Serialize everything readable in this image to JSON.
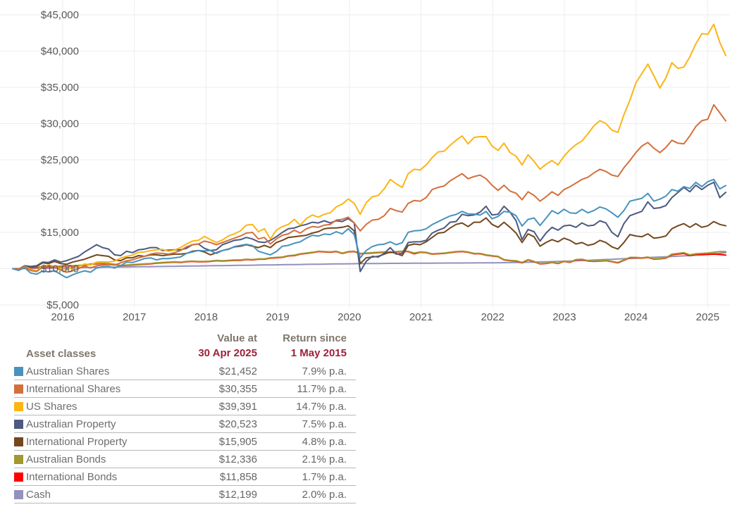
{
  "chart_data": {
    "type": "line",
    "x_resolution": "monthly",
    "x_range_labels": [
      "1 May 2015",
      "30 Apr 2025"
    ],
    "x_tick_labels": [
      "2016",
      "2017",
      "2018",
      "2019",
      "2020",
      "2021",
      "2022",
      "2023",
      "2024",
      "2025"
    ],
    "y_tick_labels": [
      "$45,000",
      "$40,000",
      "$35,000",
      "$30,000",
      "$25,000",
      "$20,000",
      "$15,000",
      "$10,000",
      "$5,000"
    ],
    "y_ticks": [
      45000,
      40000,
      35000,
      30000,
      25000,
      20000,
      15000,
      10000,
      5000
    ],
    "ylim": [
      5000,
      45000
    ],
    "grid": "on",
    "series": [
      {
        "name": "Australian Shares",
        "color": "#4793BD",
        "values": [
          10000,
          9760,
          10150,
          9400,
          9230,
          9660,
          9560,
          9720,
          9200,
          8760,
          9150,
          9450,
          9700,
          9500,
          10100,
          10260,
          10310,
          10100,
          10400,
          10900,
          10850,
          11100,
          11400,
          11490,
          11200,
          11400,
          11380,
          11500,
          11600,
          12100,
          12300,
          12500,
          12450,
          12500,
          12100,
          12500,
          12650,
          13050,
          13200,
          13350,
          13180,
          12400,
          12150,
          11900,
          12350,
          13100,
          13200,
          13500,
          13700,
          14200,
          14600,
          14490,
          14770,
          14700,
          15100,
          14790,
          15500,
          14700,
          11480,
          12500,
          13050,
          13300,
          13380,
          13700,
          13300,
          13570,
          15010,
          15210,
          15260,
          15500,
          16080,
          16480,
          16880,
          17260,
          17480,
          17890,
          17540,
          17510,
          17390,
          17880,
          16870,
          17190,
          17890,
          17780,
          17300,
          15870,
          16790,
          16990,
          15950,
          16950,
          18000,
          17560,
          18180,
          17700,
          17620,
          18170,
          17700,
          18020,
          18500,
          18240,
          17700,
          17080,
          18000,
          19300,
          19500,
          19700,
          20380,
          19300,
          19580,
          20000,
          20900,
          20680,
          21300,
          21060,
          21900,
          21300,
          22000,
          22300,
          21000,
          21452
        ]
      },
      {
        "name": "International Shares",
        "color": "#D4703B",
        "values": [
          10000,
          9900,
          10250,
          9750,
          9600,
          10200,
          10350,
          10200,
          9800,
          9500,
          9700,
          10000,
          10350,
          10100,
          10400,
          10500,
          10550,
          10500,
          10800,
          11100,
          11200,
          11500,
          11700,
          12000,
          12150,
          12100,
          12000,
          12200,
          12500,
          13000,
          13300,
          13400,
          13800,
          13600,
          13300,
          13600,
          13900,
          14200,
          14500,
          14900,
          15000,
          14100,
          14300,
          13400,
          14100,
          14600,
          14800,
          15300,
          14900,
          15500,
          15800,
          15700,
          16000,
          16100,
          16700,
          16800,
          17100,
          16300,
          15200,
          16100,
          16700,
          16800,
          17300,
          18300,
          18000,
          17800,
          19000,
          19400,
          19300,
          19800,
          20900,
          21200,
          21400,
          22100,
          22600,
          23100,
          22400,
          22700,
          22900,
          22400,
          21500,
          20800,
          21500,
          20700,
          20400,
          19500,
          20600,
          20100,
          19300,
          19900,
          20600,
          20100,
          20900,
          21300,
          21800,
          22300,
          22600,
          23200,
          23700,
          23400,
          22900,
          22700,
          23900,
          24900,
          26000,
          26900,
          27400,
          26600,
          26000,
          26700,
          27700,
          27300,
          27200,
          28300,
          29600,
          30400,
          30600,
          32600,
          31500,
          30355
        ]
      },
      {
        "name": "US Shares",
        "color": "#FCB514",
        "values": [
          10000,
          9800,
          10300,
          9900,
          9700,
          10350,
          10500,
          10300,
          10000,
          9850,
          10150,
          10250,
          10650,
          10500,
          10900,
          10950,
          10900,
          11050,
          11450,
          11700,
          11850,
          12250,
          12300,
          12500,
          12600,
          12650,
          12400,
          12550,
          12900,
          13400,
          13800,
          13900,
          14450,
          14000,
          13600,
          13950,
          14500,
          14800,
          15200,
          16000,
          16100,
          15100,
          15500,
          14100,
          15300,
          15800,
          16100,
          16800,
          16000,
          16900,
          17400,
          17100,
          17500,
          17700,
          18500,
          18900,
          19600,
          19000,
          17500,
          19100,
          19900,
          20100,
          21000,
          22300,
          21700,
          21200,
          23100,
          23700,
          23600,
          24300,
          25300,
          26100,
          26200,
          27000,
          27700,
          28300,
          27200,
          28100,
          28200,
          28200,
          26900,
          26300,
          27300,
          26000,
          25500,
          24300,
          25700,
          24800,
          23700,
          24400,
          24900,
          24300,
          25500,
          26400,
          27100,
          27600,
          28600,
          29700,
          30400,
          30000,
          29100,
          28800,
          31200,
          33200,
          35600,
          36900,
          38200,
          36600,
          34900,
          36300,
          38400,
          37600,
          37800,
          39200,
          41000,
          42400,
          42300,
          43700,
          41200,
          39391
        ]
      },
      {
        "name": "Australian Property",
        "color": "#4C5980",
        "values": [
          10000,
          9800,
          10400,
          10300,
          10400,
          10900,
          10850,
          11200,
          10900,
          11100,
          11400,
          11700,
          12300,
          12800,
          13300,
          12900,
          12700,
          11900,
          11800,
          12400,
          12200,
          12600,
          12700,
          12900,
          12900,
          12500,
          12550,
          12600,
          12600,
          12800,
          13300,
          13400,
          12800,
          12500,
          12600,
          13300,
          13600,
          13900,
          14000,
          14300,
          14100,
          13700,
          13600,
          13900,
          14400,
          15000,
          15500,
          15600,
          15900,
          16100,
          16400,
          16300,
          16600,
          16300,
          16600,
          16500,
          16900,
          16300,
          9600,
          11000,
          11700,
          11600,
          12100,
          12900,
          12000,
          12100,
          13600,
          13700,
          13700,
          13900,
          14900,
          15300,
          15600,
          16400,
          16500,
          17500,
          17300,
          17400,
          17800,
          18600,
          17400,
          17500,
          18600,
          17800,
          16600,
          14000,
          15400,
          15100,
          13800,
          14900,
          15700,
          15300,
          15900,
          16000,
          15700,
          16300,
          15900,
          16000,
          16600,
          16300,
          15000,
          14400,
          16200,
          17300,
          17600,
          17900,
          19200,
          18300,
          18400,
          18700,
          19800,
          20500,
          21200,
          20600,
          21500,
          20900,
          21500,
          21900,
          19800,
          20523
        ]
      },
      {
        "name": "International Property",
        "color": "#74471C",
        "values": [
          10000,
          9900,
          10400,
          10200,
          10300,
          10800,
          10700,
          11000,
          10700,
          10600,
          10900,
          11100,
          11300,
          11600,
          11900,
          11800,
          11700,
          11200,
          11100,
          11500,
          11500,
          11800,
          11700,
          11900,
          11900,
          11800,
          11900,
          12000,
          12000,
          12100,
          12400,
          12500,
          12300,
          11900,
          12200,
          12500,
          12700,
          13000,
          13100,
          13300,
          13100,
          12900,
          13200,
          12900,
          13600,
          13900,
          14300,
          14400,
          14500,
          14600,
          14900,
          15100,
          15500,
          15600,
          15600,
          15700,
          15900,
          15200,
          10700,
          11500,
          11600,
          11700,
          12000,
          12300,
          12100,
          11800,
          13200,
          13400,
          13300,
          13700,
          14300,
          14900,
          15000,
          15600,
          16100,
          16300,
          15800,
          16400,
          16400,
          17000,
          16100,
          15700,
          16400,
          15700,
          14900,
          13600,
          14800,
          14400,
          13100,
          13600,
          14000,
          13700,
          14200,
          13900,
          13400,
          13600,
          13200,
          13400,
          13900,
          13600,
          13000,
          12700,
          13600,
          14700,
          14500,
          14400,
          14800,
          14200,
          14300,
          14500,
          15500,
          15900,
          16200,
          15700,
          16200,
          15700,
          15900,
          16500,
          16100,
          15905
        ]
      },
      {
        "name": "Australian Bonds",
        "color": "#A2982F",
        "values": [
          10000,
          9920,
          10090,
          10150,
          10200,
          10250,
          10200,
          10260,
          10350,
          10450,
          10400,
          10450,
          10500,
          10650,
          10700,
          10750,
          10700,
          10600,
          10450,
          10500,
          10550,
          10600,
          10650,
          10700,
          10800,
          10850,
          10900,
          10950,
          10900,
          11000,
          11050,
          11000,
          11000,
          11050,
          11150,
          11100,
          11150,
          11200,
          11200,
          11300,
          11250,
          11350,
          11350,
          11500,
          11550,
          11600,
          11800,
          11850,
          12050,
          12150,
          12250,
          12400,
          12350,
          12300,
          12400,
          12150,
          12350,
          12400,
          12100,
          12150,
          12200,
          12250,
          12300,
          12250,
          12350,
          12400,
          12400,
          12150,
          12300,
          12250,
          12050,
          12100,
          12150,
          12250,
          12350,
          12400,
          12300,
          12100,
          12100,
          11900,
          11800,
          11700,
          11250,
          11150,
          11100,
          10850,
          11250,
          11000,
          10700,
          10750,
          10900,
          10750,
          11050,
          10900,
          11250,
          11300,
          11100,
          11050,
          11100,
          11150,
          11000,
          10850,
          11200,
          11550,
          11550,
          11500,
          11600,
          11350,
          11400,
          11500,
          12000,
          12100,
          12200,
          11900,
          12050,
          12100,
          12150,
          12250,
          12350,
          12336
        ]
      },
      {
        "name": "International Bonds",
        "color": "#FF0000",
        "values": [
          10000,
          9950,
          10050,
          10100,
          10150,
          10200,
          10150,
          10200,
          10300,
          10400,
          10350,
          10400,
          10450,
          10600,
          10650,
          10700,
          10650,
          10550,
          10400,
          10450,
          10500,
          10550,
          10600,
          10650,
          10750,
          10800,
          10850,
          10900,
          10850,
          10950,
          11000,
          10950,
          10950,
          11000,
          11100,
          11050,
          11100,
          11150,
          11150,
          11250,
          11200,
          11300,
          11300,
          11450,
          11500,
          11550,
          11750,
          11800,
          12000,
          12100,
          12200,
          12350,
          12300,
          12250,
          12350,
          12100,
          12300,
          12350,
          12050,
          12100,
          12150,
          12200,
          12250,
          12200,
          12300,
          12350,
          12350,
          12050,
          12250,
          12200,
          12000,
          12050,
          12100,
          12200,
          12300,
          12350,
          12250,
          12050,
          12050,
          11850,
          11750,
          11650,
          11200,
          11100,
          11050,
          10800,
          11200,
          10950,
          10650,
          10700,
          10850,
          10700,
          11000,
          10850,
          11200,
          11250,
          11050,
          11000,
          11050,
          11100,
          10950,
          10800,
          11150,
          11500,
          11500,
          11450,
          11550,
          11300,
          11350,
          11450,
          11900,
          12000,
          12100,
          11800,
          11950,
          11950,
          11950,
          12000,
          11950,
          11858
        ]
      },
      {
        "name": "Cash",
        "color": "#9391BE",
        "values": [
          10000,
          10012,
          10024,
          10036,
          10048,
          10060,
          10072,
          10084,
          10096,
          10108,
          10120,
          10132,
          10144,
          10156,
          10168,
          10180,
          10192,
          10204,
          10216,
          10228,
          10240,
          10252,
          10264,
          10276,
          10288,
          10300,
          10312,
          10324,
          10336,
          10348,
          10360,
          10372,
          10384,
          10396,
          10408,
          10420,
          10432,
          10444,
          10456,
          10468,
          10480,
          10492,
          10504,
          10516,
          10528,
          10540,
          10552,
          10564,
          10576,
          10588,
          10600,
          10612,
          10624,
          10636,
          10648,
          10660,
          10670,
          10680,
          10688,
          10696,
          10704,
          10712,
          10718,
          10724,
          10730,
          10736,
          10742,
          10748,
          10752,
          10756,
          10760,
          10764,
          10768,
          10772,
          10776,
          10780,
          10784,
          10788,
          10792,
          10800,
          10808,
          10816,
          10826,
          10838,
          10852,
          10868,
          10886,
          10906,
          10928,
          10950,
          10972,
          10996,
          11022,
          11050,
          11080,
          11112,
          11146,
          11182,
          11220,
          11258,
          11296,
          11334,
          11372,
          11410,
          11448,
          11486,
          11524,
          11562,
          11600,
          11640,
          11680,
          11720,
          11760,
          11800,
          11840,
          11880,
          11960,
          12040,
          12120,
          12199
        ]
      }
    ]
  },
  "table": {
    "asset_classes_label": "Asset classes",
    "col_value_line1": "Value at",
    "col_value_line2": "30 Apr 2025",
    "col_return_line1": "Return since",
    "col_return_line2": "1 May 2015",
    "rows": [
      {
        "label": "Australian Shares",
        "value": "$21,452",
        "return": "7.9% p.a."
      },
      {
        "label": "International Shares",
        "value": "$30,355",
        "return": "11.7% p.a."
      },
      {
        "label": "US Shares",
        "value": "$39,391",
        "return": "14.7% p.a."
      },
      {
        "label": "Australian Property",
        "value": "$20,523",
        "return": "7.5% p.a."
      },
      {
        "label": "International Property",
        "value": "$15,905",
        "return": "4.8% p.a."
      },
      {
        "label": "Australian Bonds",
        "value": "$12,336",
        "return": "2.1% p.a."
      },
      {
        "label": "International Bonds",
        "value": "$11,858",
        "return": "1.7% p.a."
      },
      {
        "label": "Cash",
        "value": "$12,199",
        "return": "2.0% p.a."
      }
    ]
  },
  "colors": {
    "grid": "#ededed",
    "axis_text": "#595959",
    "header_text": "#7f776c",
    "header_date": "#9e2139",
    "row_text": "#6e6e6e",
    "row_border": "#b8b8b8"
  }
}
